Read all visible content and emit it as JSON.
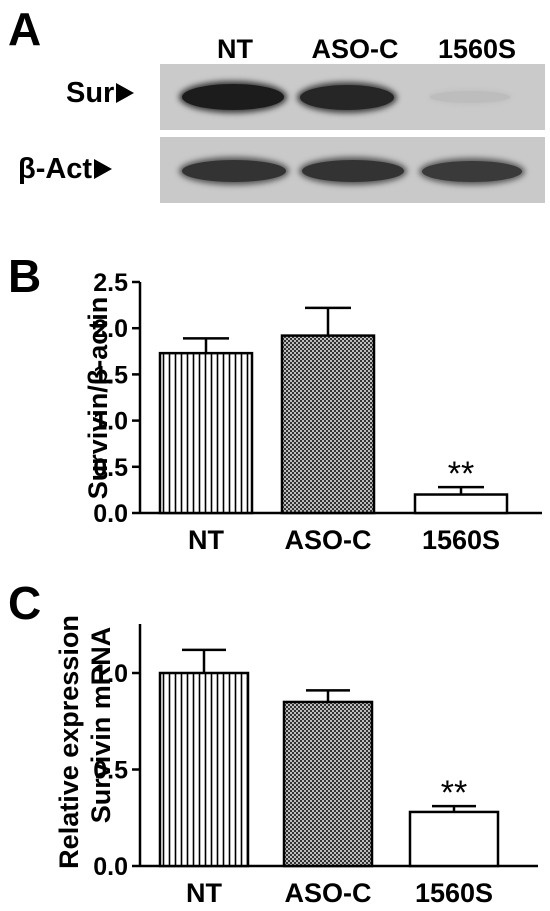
{
  "panelA": {
    "letter": "A",
    "lanes": [
      "NT",
      "ASO-C",
      "1560S"
    ],
    "bands": [
      {
        "label": "Sur",
        "intensity": [
          0.95,
          0.9,
          0.05
        ]
      },
      {
        "label": "β-Act",
        "intensity": [
          0.9,
          0.9,
          0.85
        ]
      }
    ]
  },
  "panelB": {
    "letter": "B",
    "chart_data": {
      "type": "bar",
      "categories": [
        "NT",
        "ASO-C",
        "1560S"
      ],
      "values": [
        1.73,
        1.92,
        0.2
      ],
      "errors": [
        0.16,
        0.3,
        0.08
      ],
      "ylabel": "Survivin/β-actin",
      "ylim": [
        0,
        2.5
      ],
      "yticks": [
        "0.0",
        "0.5",
        "1.0",
        "1.5",
        "2.0",
        "2.5"
      ],
      "ytick_values": [
        0,
        0.5,
        1.0,
        1.5,
        2.0,
        2.5
      ],
      "annotations": [
        "",
        "",
        "**"
      ],
      "fills": [
        "vertical-stripes",
        "crosshatch",
        "white"
      ],
      "grid": false
    }
  },
  "panelC": {
    "letter": "C",
    "chart_data": {
      "type": "bar",
      "categories": [
        "NT",
        "ASO-C",
        "1560S"
      ],
      "values": [
        1.0,
        0.85,
        0.28
      ],
      "errors": [
        0.12,
        0.06,
        0.03
      ],
      "ylabel_line1": "Relative expression",
      "ylabel_line2": "Survivin mRNA",
      "ylim": [
        0,
        1.2
      ],
      "yticks": [
        "0.0",
        "0.5",
        "1.0"
      ],
      "ytick_values": [
        0,
        0.5,
        1.0
      ],
      "annotations": [
        "",
        "",
        "**"
      ],
      "fills": [
        "vertical-stripes",
        "crosshatch",
        "white"
      ],
      "grid": false
    }
  }
}
